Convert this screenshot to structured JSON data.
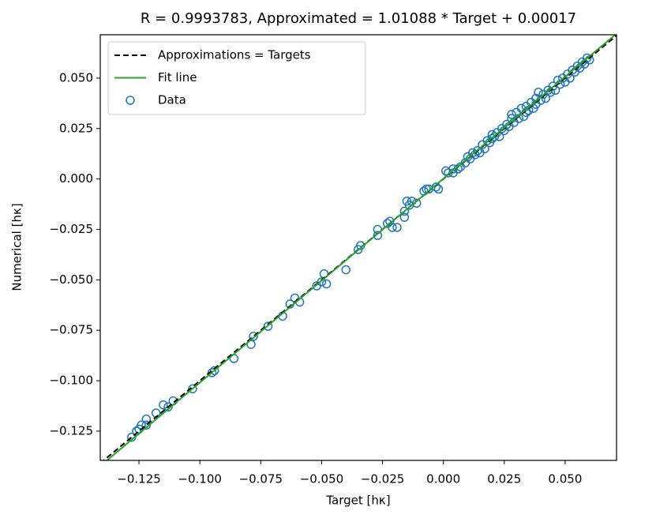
{
  "chart_data": {
    "type": "scatter",
    "title": "R = 0.9993783, Approximated = 1.01088 * Target + 0.00017",
    "xlabel": "Target [hκ]",
    "ylabel": "Numerical [hκ]",
    "xlim": [
      -0.1409,
      0.0711
    ],
    "ylim": [
      -0.1395,
      0.0715
    ],
    "xticks": [
      {
        "value": -0.125,
        "label": "−0.125"
      },
      {
        "value": -0.1,
        "label": "−0.100"
      },
      {
        "value": -0.075,
        "label": "−0.075"
      },
      {
        "value": -0.05,
        "label": "−0.050"
      },
      {
        "value": -0.025,
        "label": "−0.025"
      },
      {
        "value": 0,
        "label": "0.000"
      },
      {
        "value": 0.025,
        "label": "0.025"
      },
      {
        "value": 0.05,
        "label": "0.050"
      }
    ],
    "yticks": [
      {
        "value": -0.125,
        "label": "−0.125"
      },
      {
        "value": -0.1,
        "label": "−0.100"
      },
      {
        "value": -0.075,
        "label": "−0.075"
      },
      {
        "value": -0.05,
        "label": "−0.050"
      },
      {
        "value": -0.025,
        "label": "−0.025"
      },
      {
        "value": 0,
        "label": "0.000"
      },
      {
        "value": 0.025,
        "label": "0.025"
      },
      {
        "value": 0.05,
        "label": "0.050"
      }
    ],
    "legend": "upper left",
    "series": [
      {
        "name": "Approximations = Targets",
        "kind": "line",
        "dashed": true,
        "color": "#000000",
        "x": [
          -0.1409,
          0.0711
        ],
        "values": [
          -0.1409,
          0.0711
        ]
      },
      {
        "name": "Fit line",
        "kind": "line",
        "dashed": false,
        "color": "#2ca02c",
        "x": [
          -0.1409,
          0.0711
        ],
        "values": [
          -0.14227,
          0.07204
        ]
      },
      {
        "name": "Data",
        "kind": "scatter",
        "color": "#1f77b4",
        "x": [
          -0.128,
          -0.126,
          -0.125,
          -0.124,
          -0.122,
          -0.122,
          -0.118,
          -0.115,
          -0.113,
          -0.111,
          -0.103,
          -0.095,
          -0.094,
          -0.086,
          -0.079,
          -0.078,
          -0.072,
          -0.066,
          -0.063,
          -0.061,
          -0.059,
          -0.052,
          -0.05,
          -0.049,
          -0.048,
          -0.04,
          -0.035,
          -0.034,
          -0.027,
          -0.027,
          -0.023,
          -0.022,
          -0.021,
          -0.019,
          -0.016,
          -0.016,
          -0.015,
          -0.014,
          -0.013,
          -0.011,
          -0.008,
          -0.007,
          -0.006,
          -0.003,
          -0.002,
          0.001,
          0.002,
          0.004,
          0.004,
          0.006,
          0.007,
          0.009,
          0.01,
          0.011,
          0.012,
          0.013,
          0.014,
          0.015,
          0.016,
          0.017,
          0.018,
          0.019,
          0.02,
          0.02,
          0.021,
          0.022,
          0.023,
          0.024,
          0.025,
          0.026,
          0.027,
          0.028,
          0.028,
          0.029,
          0.03,
          0.031,
          0.032,
          0.033,
          0.034,
          0.034,
          0.035,
          0.036,
          0.037,
          0.038,
          0.038,
          0.039,
          0.04,
          0.041,
          0.042,
          0.043,
          0.044,
          0.045,
          0.046,
          0.047,
          0.048,
          0.049,
          0.05,
          0.051,
          0.052,
          0.053,
          0.054,
          0.055,
          0.056,
          0.057,
          0.058,
          0.059,
          0.06
        ],
        "values": [
          -0.128,
          -0.125,
          -0.124,
          -0.122,
          -0.119,
          -0.122,
          -0.116,
          -0.112,
          -0.113,
          -0.11,
          -0.104,
          -0.096,
          -0.095,
          -0.089,
          -0.082,
          -0.078,
          -0.073,
          -0.068,
          -0.062,
          -0.059,
          -0.061,
          -0.053,
          -0.051,
          -0.047,
          -0.052,
          -0.045,
          -0.035,
          -0.033,
          -0.025,
          -0.028,
          -0.022,
          -0.021,
          -0.024,
          -0.024,
          -0.019,
          -0.016,
          -0.011,
          -0.013,
          -0.011,
          -0.012,
          -0.006,
          -0.005,
          -0.005,
          -0.004,
          -0.005,
          0.004,
          0.003,
          0.005,
          0.003,
          0.005,
          0.006,
          0.008,
          0.011,
          0.01,
          0.013,
          0.012,
          0.014,
          0.013,
          0.017,
          0.015,
          0.019,
          0.018,
          0.022,
          0.02,
          0.021,
          0.023,
          0.021,
          0.025,
          0.024,
          0.027,
          0.026,
          0.03,
          0.032,
          0.028,
          0.033,
          0.03,
          0.035,
          0.031,
          0.036,
          0.033,
          0.034,
          0.038,
          0.035,
          0.04,
          0.037,
          0.043,
          0.039,
          0.042,
          0.04,
          0.044,
          0.043,
          0.046,
          0.044,
          0.049,
          0.047,
          0.05,
          0.048,
          0.052,
          0.05,
          0.054,
          0.053,
          0.056,
          0.055,
          0.058,
          0.057,
          0.06,
          0.059
        ]
      }
    ]
  }
}
